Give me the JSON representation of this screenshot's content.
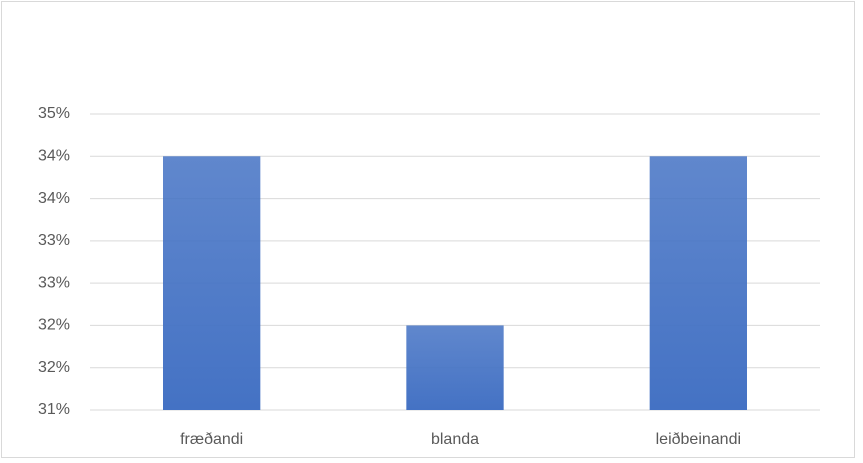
{
  "chart_data": {
    "type": "bar",
    "categories": [
      "fræðandi",
      "blanda",
      "leiðbeinandi"
    ],
    "values": [
      34,
      32,
      34
    ],
    "color": "#4472c4",
    "ylim": [
      31,
      34.5
    ],
    "yticks": [
      {
        "value": 31,
        "label": "31%"
      },
      {
        "value": 31.5,
        "label": "32%"
      },
      {
        "value": 32,
        "label": "32%"
      },
      {
        "value": 32.5,
        "label": "33%"
      },
      {
        "value": 33,
        "label": "33%"
      },
      {
        "value": 33.5,
        "label": "34%"
      },
      {
        "value": 34,
        "label": "34%"
      },
      {
        "value": 34.5,
        "label": "35%"
      }
    ],
    "grid": true
  }
}
